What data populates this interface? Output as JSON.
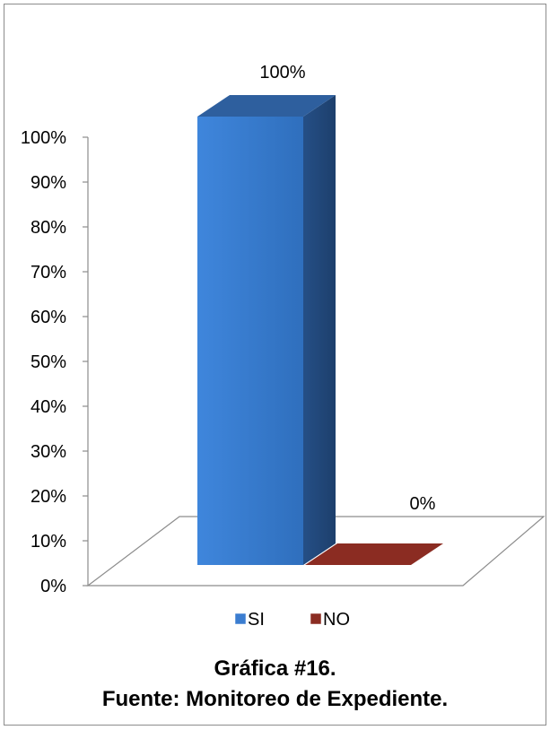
{
  "chart_data": {
    "type": "bar",
    "categories": [
      "SI",
      "NO"
    ],
    "values": [
      100,
      0
    ],
    "data_labels": [
      "100%",
      "0%"
    ],
    "ylim": [
      0,
      100
    ],
    "yticks": [
      "0%",
      "10%",
      "20%",
      "30%",
      "40%",
      "50%",
      "60%",
      "70%",
      "80%",
      "90%",
      "100%"
    ],
    "legend": [
      "SI",
      "NO"
    ],
    "legend_position": "bottom",
    "colors": {
      "SI": "#3b7dd0",
      "NO": "#8b2c22"
    },
    "grid": false,
    "style": "3d-column"
  },
  "captions": {
    "line1": "Gráfica #16.",
    "line2": "Fuente: Monitoreo de Expediente."
  }
}
